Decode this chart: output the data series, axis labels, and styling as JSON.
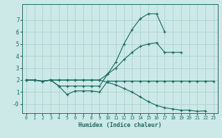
{
  "xlabel": "Humidex (Indice chaleur)",
  "background_color": "#cde9e7",
  "grid_color": "#aad3d0",
  "line_color": "#1a6b60",
  "x_values": [
    0,
    1,
    2,
    3,
    4,
    5,
    6,
    7,
    8,
    9,
    10,
    11,
    12,
    13,
    14,
    15,
    16,
    17,
    18,
    19,
    20,
    21,
    22,
    23
  ],
  "series": [
    [
      2.0,
      2.0,
      1.9,
      2.0,
      1.5,
      0.8,
      1.1,
      1.1,
      1.1,
      1.0,
      1.9,
      1.9,
      1.9,
      1.9,
      1.9,
      1.9,
      1.9,
      1.9,
      1.9,
      1.9,
      1.9,
      1.9,
      1.9,
      1.9
    ],
    [
      2.0,
      2.0,
      1.9,
      2.0,
      2.0,
      2.0,
      2.0,
      2.0,
      2.0,
      2.0,
      2.5,
      3.0,
      3.7,
      4.3,
      4.8,
      5.0,
      5.1,
      4.3,
      4.3,
      4.3,
      null,
      null,
      null,
      null
    ],
    [
      2.0,
      2.0,
      1.9,
      2.0,
      1.5,
      1.5,
      1.5,
      1.5,
      1.5,
      1.5,
      2.5,
      3.5,
      5.0,
      6.2,
      7.1,
      7.5,
      7.5,
      6.0,
      null,
      null,
      null,
      null,
      null,
      null
    ],
    [
      2.0,
      2.0,
      1.9,
      2.0,
      2.0,
      2.0,
      2.0,
      2.0,
      2.0,
      2.0,
      1.8,
      1.6,
      1.3,
      1.0,
      0.6,
      0.2,
      -0.1,
      -0.3,
      -0.4,
      -0.5,
      -0.5,
      -0.6,
      -0.55,
      null
    ]
  ],
  "ylim": [
    -0.75,
    8.3
  ],
  "xlim": [
    -0.5,
    23.5
  ],
  "yticks": [
    0,
    1,
    2,
    3,
    4,
    5,
    6,
    7
  ],
  "ytick_labels": [
    "-0",
    "1",
    "2",
    "3",
    "4",
    "5",
    "6",
    "7"
  ],
  "xticks": [
    0,
    1,
    2,
    3,
    4,
    5,
    6,
    7,
    8,
    9,
    10,
    11,
    12,
    13,
    14,
    15,
    16,
    17,
    18,
    19,
    20,
    21,
    22,
    23
  ]
}
